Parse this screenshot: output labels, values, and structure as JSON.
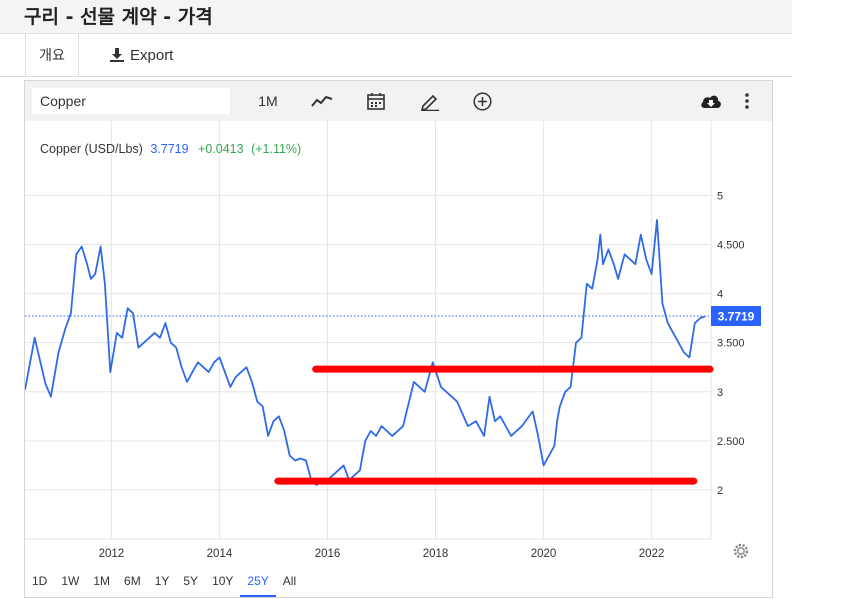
{
  "header": {
    "title": "구리 - 선물 계약 - 가격"
  },
  "tabs": {
    "overview": "개요",
    "export": "Export"
  },
  "toolbar": {
    "symbol_value": "Copper",
    "interval": "1M",
    "icons": [
      "line-chart-icon",
      "calendar-icon",
      "pencil-icon",
      "plus-circle-icon",
      "cloud-download-icon",
      "more-vertical-icon"
    ]
  },
  "legend": {
    "series_name": "Copper (USD/Lbs)",
    "last_value": "3.7719",
    "change": "+0.0413",
    "change_pct": "(+1.11%)"
  },
  "range_buttons": [
    "1D",
    "1W",
    "1M",
    "6M",
    "1Y",
    "5Y",
    "10Y",
    "25Y",
    "All"
  ],
  "range_active": "25Y",
  "colors": {
    "line": "#2f6be8",
    "accent": "#2962ff",
    "positive": "#33a852",
    "annotation": "#ff0000"
  },
  "chart_data": {
    "type": "line",
    "title": "",
    "xlabel": "",
    "ylabel": "",
    "xlim": [
      2010.4,
      2023.1
    ],
    "ylim": [
      1.5,
      5.3
    ],
    "x_ticks": [
      2012,
      2014,
      2016,
      2018,
      2020,
      2022
    ],
    "x_tick_labels": [
      "2012",
      "2014",
      "2016",
      "2018",
      "2020",
      "2022"
    ],
    "y_ticks": [
      2,
      2.5,
      3,
      3.5,
      4,
      4.5,
      5
    ],
    "y_tick_labels": [
      "2",
      "2.500",
      "3",
      "3.500",
      "4",
      "4.500",
      "5"
    ],
    "last_price_label": "3.7719",
    "last_price": 3.7719,
    "grid": true,
    "series": [
      {
        "x": [
          2010.4,
          2010.58,
          2010.78,
          2010.88,
          2011.02,
          2011.15,
          2011.25,
          2011.35,
          2011.45,
          2011.55,
          2011.62,
          2011.7,
          2011.8,
          2011.88,
          2011.98,
          2012.1,
          2012.2,
          2012.3,
          2012.4,
          2012.5,
          2012.6,
          2012.7,
          2012.8,
          2012.9,
          2013.0,
          2013.1,
          2013.2,
          2013.3,
          2013.4,
          2013.5,
          2013.6,
          2013.7,
          2013.8,
          2013.9,
          2014.0,
          2014.1,
          2014.2,
          2014.3,
          2014.4,
          2014.5,
          2014.6,
          2014.7,
          2014.8,
          2014.9,
          2015.0,
          2015.1,
          2015.2,
          2015.3,
          2015.4,
          2015.5,
          2015.6,
          2015.7,
          2015.8,
          2015.9,
          2016.0,
          2016.1,
          2016.2,
          2016.3,
          2016.4,
          2016.5,
          2016.6,
          2016.7,
          2016.8,
          2016.9,
          2017.0,
          2017.2,
          2017.4,
          2017.6,
          2017.8,
          2017.95,
          2018.1,
          2018.2,
          2018.4,
          2018.6,
          2018.75,
          2018.9,
          2019.0,
          2019.1,
          2019.2,
          2019.4,
          2019.6,
          2019.8,
          2019.9,
          2020.0,
          2020.1,
          2020.2,
          2020.25,
          2020.3,
          2020.4,
          2020.5,
          2020.6,
          2020.7,
          2020.8,
          2020.9,
          2021.0,
          2021.05,
          2021.1,
          2021.2,
          2021.3,
          2021.38,
          2021.5,
          2021.6,
          2021.7,
          2021.8,
          2021.9,
          2022.0,
          2022.1,
          2022.2,
          2022.3,
          2022.4,
          2022.5,
          2022.6,
          2022.7,
          2022.8,
          2022.9,
          2023.0
        ],
        "y": [
          3.02,
          3.55,
          3.08,
          2.95,
          3.4,
          3.65,
          3.8,
          4.4,
          4.48,
          4.3,
          4.15,
          4.2,
          4.48,
          4.1,
          3.2,
          3.6,
          3.55,
          3.85,
          3.8,
          3.45,
          3.5,
          3.55,
          3.6,
          3.55,
          3.7,
          3.5,
          3.45,
          3.25,
          3.1,
          3.2,
          3.3,
          3.25,
          3.2,
          3.3,
          3.35,
          3.2,
          3.05,
          3.15,
          3.2,
          3.25,
          3.1,
          2.9,
          2.85,
          2.55,
          2.7,
          2.75,
          2.6,
          2.35,
          2.3,
          2.32,
          2.3,
          2.1,
          2.05,
          2.1,
          2.1,
          2.15,
          2.2,
          2.25,
          2.1,
          2.15,
          2.2,
          2.5,
          2.6,
          2.55,
          2.65,
          2.55,
          2.65,
          3.1,
          3.0,
          3.3,
          3.05,
          3.0,
          2.9,
          2.65,
          2.7,
          2.55,
          2.95,
          2.7,
          2.75,
          2.55,
          2.65,
          2.8,
          2.55,
          2.25,
          2.35,
          2.45,
          2.7,
          2.85,
          3.0,
          3.05,
          3.5,
          3.55,
          4.1,
          4.05,
          4.35,
          4.6,
          4.3,
          4.45,
          4.3,
          4.15,
          4.4,
          4.35,
          4.3,
          4.6,
          4.35,
          4.2,
          4.75,
          3.9,
          3.7,
          3.6,
          3.5,
          3.4,
          3.35,
          3.7,
          3.75,
          3.77
        ]
      }
    ],
    "annotations": [
      {
        "type": "hline",
        "x_start": 2015.8,
        "x_end": 2023.1,
        "y": 3.22,
        "color": "#ff0000"
      },
      {
        "type": "hline",
        "x_start": 2015.1,
        "x_end": 2022.8,
        "y": 2.08,
        "color": "#ff0000"
      }
    ]
  }
}
